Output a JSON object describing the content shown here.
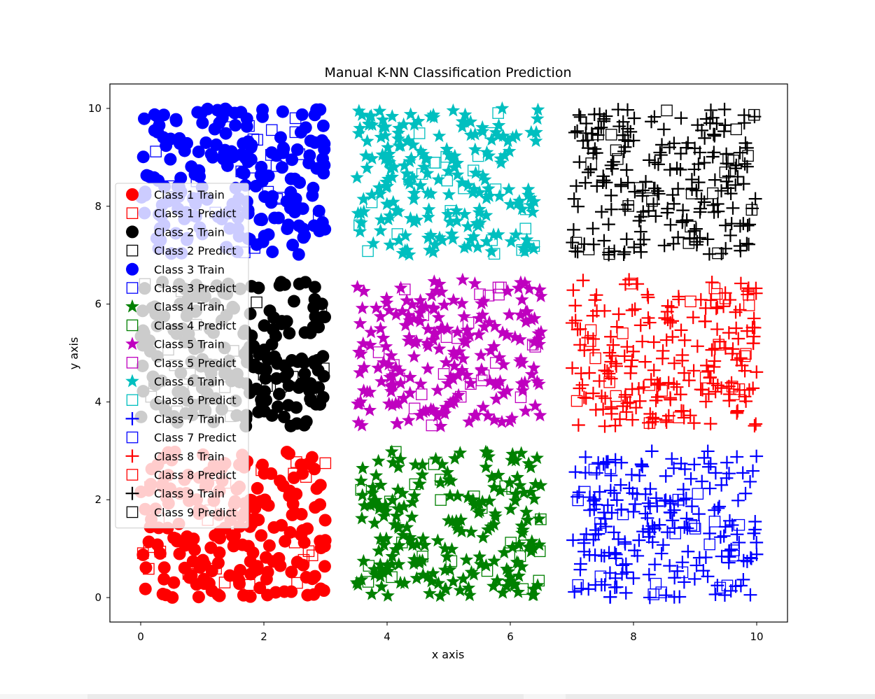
{
  "chart_data": {
    "type": "scatter",
    "title": "Manual K-NN Classification Prediction",
    "xlabel": "x axis",
    "ylabel": "y axis",
    "xlim": [
      -0.5,
      10.5
    ],
    "ylim": [
      -0.5,
      10.5
    ],
    "xticks": [
      "0",
      "2",
      "4",
      "6",
      "8",
      "10"
    ],
    "yticks": [
      "0",
      "2",
      "4",
      "6",
      "8",
      "10"
    ],
    "legend_position": "center-left",
    "grid": false,
    "classes": [
      {
        "name": "Class 1",
        "color": "#ff0000",
        "train_marker": "circle",
        "region": {
          "x": [
            0,
            3
          ],
          "y": [
            0,
            3
          ]
        }
      },
      {
        "name": "Class 2",
        "color": "#000000",
        "train_marker": "circle",
        "region": {
          "x": [
            0,
            3
          ],
          "y": [
            3.5,
            6.5
          ]
        }
      },
      {
        "name": "Class 3",
        "color": "#0000ff",
        "train_marker": "circle",
        "region": {
          "x": [
            0,
            3
          ],
          "y": [
            7,
            10
          ]
        }
      },
      {
        "name": "Class 4",
        "color": "#008000",
        "train_marker": "star",
        "region": {
          "x": [
            3.5,
            6.5
          ],
          "y": [
            0,
            3
          ]
        }
      },
      {
        "name": "Class 5",
        "color": "#bf00bf",
        "train_marker": "star",
        "region": {
          "x": [
            3.5,
            6.5
          ],
          "y": [
            3.5,
            6.5
          ]
        }
      },
      {
        "name": "Class 6",
        "color": "#00bfbf",
        "train_marker": "star",
        "region": {
          "x": [
            3.5,
            6.5
          ],
          "y": [
            7,
            10
          ]
        }
      },
      {
        "name": "Class 7",
        "color": "#0000ff",
        "train_marker": "plus",
        "region": {
          "x": [
            7,
            10
          ],
          "y": [
            0,
            3
          ]
        }
      },
      {
        "name": "Class 8",
        "color": "#ff0000",
        "train_marker": "plus",
        "region": {
          "x": [
            7,
            10
          ],
          "y": [
            3.5,
            6.5
          ]
        }
      },
      {
        "name": "Class 9",
        "color": "#000000",
        "train_marker": "plus",
        "region": {
          "x": [
            7,
            10
          ],
          "y": [
            7,
            10
          ]
        }
      }
    ],
    "train_points_per_class": 200,
    "predict_points_per_class": 25,
    "predict_marker": "square-open",
    "legend": [
      {
        "label": "Class 1 Train",
        "marker": "circle",
        "color": "#ff0000"
      },
      {
        "label": "Class 1 Predict",
        "marker": "square-open",
        "color": "#ff0000"
      },
      {
        "label": "Class 2 Train",
        "marker": "circle",
        "color": "#000000"
      },
      {
        "label": "Class 2 Predict",
        "marker": "square-open",
        "color": "#000000"
      },
      {
        "label": "Class 3 Train",
        "marker": "circle",
        "color": "#0000ff"
      },
      {
        "label": "Class 3 Predict",
        "marker": "square-open",
        "color": "#0000ff"
      },
      {
        "label": "Class 4 Train",
        "marker": "star",
        "color": "#008000"
      },
      {
        "label": "Class 4 Predict",
        "marker": "square-open",
        "color": "#008000"
      },
      {
        "label": "Class 5 Train",
        "marker": "star",
        "color": "#bf00bf"
      },
      {
        "label": "Class 5 Predict",
        "marker": "square-open",
        "color": "#bf00bf"
      },
      {
        "label": "Class 6 Train",
        "marker": "star",
        "color": "#00bfbf"
      },
      {
        "label": "Class 6 Predict",
        "marker": "square-open",
        "color": "#00bfbf"
      },
      {
        "label": "Class 7 Train",
        "marker": "plus",
        "color": "#0000ff"
      },
      {
        "label": "Class 7 Predict",
        "marker": "square-open",
        "color": "#0000ff"
      },
      {
        "label": "Class 8 Train",
        "marker": "plus",
        "color": "#ff0000"
      },
      {
        "label": "Class 8 Predict",
        "marker": "square-open",
        "color": "#ff0000"
      },
      {
        "label": "Class 9 Train",
        "marker": "plus",
        "color": "#000000"
      },
      {
        "label": "Class 9 Predict",
        "marker": "square-open",
        "color": "#000000"
      }
    ]
  }
}
